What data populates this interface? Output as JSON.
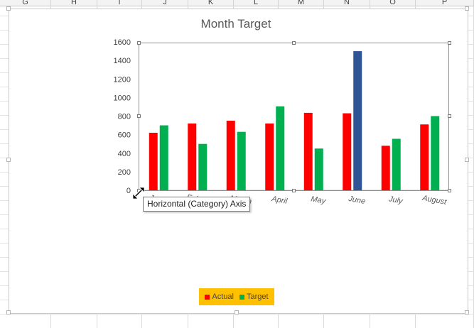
{
  "spreadsheet": {
    "columns": [
      "G",
      "H",
      "I",
      "J",
      "K",
      "L",
      "M",
      "N",
      "O",
      "P"
    ]
  },
  "chart_data": {
    "type": "bar",
    "title": "Month Target",
    "categories": [
      "January",
      "February",
      "March",
      "April",
      "May",
      "June",
      "July",
      "August"
    ],
    "series": [
      {
        "name": "Actual",
        "values": [
          620,
          720,
          750,
          720,
          835,
          830,
          480,
          710
        ],
        "color": "#ff0000"
      },
      {
        "name": "Target",
        "values": [
          700,
          500,
          630,
          905,
          450,
          1500,
          555,
          800
        ],
        "color": "#00b050"
      }
    ],
    "highlight": {
      "series": "Target",
      "category": "June",
      "color": "#2f5597"
    },
    "ylim": [
      0,
      1600
    ],
    "yticks": [
      0,
      200,
      400,
      600,
      800,
      1000,
      1200,
      1400,
      1600
    ],
    "xlabel": "",
    "ylabel": "",
    "grid": false,
    "legend_position": "bottom",
    "legend_background": "#ffc000"
  },
  "tooltip": {
    "text": "Horizontal (Category) Axis"
  }
}
